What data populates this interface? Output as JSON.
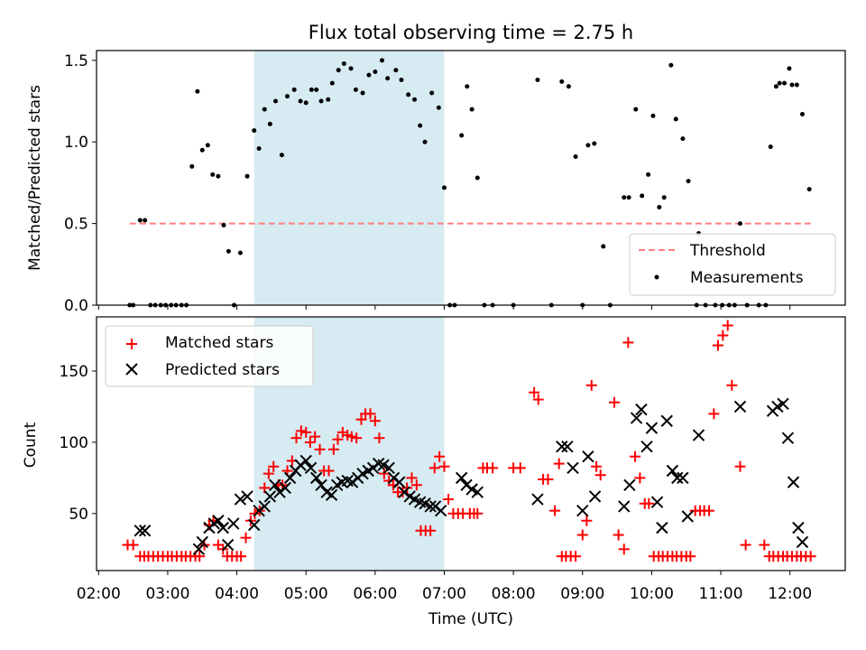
{
  "chart_data": {
    "title": "Flux total observing time = 2.75 h",
    "xlabel": "Time (UTC)",
    "x_unit": "hours UTC",
    "xlim": [
      1.97,
      12.8
    ],
    "xticks": [
      2,
      3,
      4,
      5,
      6,
      7,
      8,
      9,
      10,
      11,
      12
    ],
    "xtick_labels": [
      "02:00",
      "03:00",
      "04:00",
      "05:00",
      "06:00",
      "07:00",
      "08:00",
      "09:00",
      "10:00",
      "11:00",
      "12:00"
    ],
    "shaded_span": {
      "x": [
        4.25,
        7.0
      ],
      "color": "#add8e6"
    },
    "panels": [
      {
        "type": "scatter",
        "ylabel": "Matched/Predicted stars",
        "ylim": [
          0,
          1.56
        ],
        "yticks": [
          0.0,
          0.5,
          1.0,
          1.5
        ],
        "ytick_labels": [
          "0.0",
          "0.5",
          "1.0",
          "1.5"
        ],
        "legend_position": "lower-right",
        "series": [
          {
            "name": "Threshold",
            "kind": "hline",
            "y": 0.5,
            "x_range": [
              2.45,
              12.3
            ],
            "color": "#ff7f7f",
            "dash": true
          },
          {
            "name": "Measurements",
            "kind": "points",
            "color": "#000000",
            "x": [
              2.45,
              2.5,
              2.6,
              2.67,
              2.75,
              2.82,
              2.9,
              2.97,
              3.05,
              3.12,
              3.2,
              3.27,
              3.35,
              3.43,
              3.5,
              3.58,
              3.65,
              3.73,
              3.81,
              3.88,
              3.96,
              4.05,
              4.15,
              4.25,
              4.32,
              4.4,
              4.48,
              4.56,
              4.65,
              4.73,
              4.83,
              4.92,
              5.0,
              5.08,
              5.15,
              5.22,
              5.32,
              5.38,
              5.47,
              5.55,
              5.65,
              5.72,
              5.82,
              5.91,
              6.0,
              6.1,
              6.18,
              6.3,
              6.38,
              6.48,
              6.57,
              6.65,
              6.72,
              6.82,
              6.92,
              7.0,
              7.08,
              7.15,
              7.25,
              7.33,
              7.4,
              7.48,
              7.58,
              7.7,
              8.0,
              8.35,
              8.55,
              8.7,
              8.8,
              8.9,
              9.0,
              9.08,
              9.17,
              9.3,
              9.4,
              9.6,
              9.67,
              9.77,
              9.86,
              9.95,
              10.02,
              10.11,
              10.18,
              10.28,
              10.35,
              10.45,
              10.53,
              10.65,
              10.68,
              10.78,
              10.92,
              11.02,
              11.12,
              11.2,
              11.28,
              11.38,
              11.55,
              11.65,
              11.72,
              11.8,
              11.85,
              11.92,
              11.99,
              12.03,
              12.1,
              12.18,
              12.28
            ],
            "y": [
              0.0,
              0.0,
              0.52,
              0.52,
              0.0,
              0.0,
              0.0,
              0.0,
              0.0,
              0.0,
              0.0,
              0.0,
              0.85,
              1.31,
              0.95,
              0.98,
              0.8,
              0.79,
              0.49,
              0.33,
              0.0,
              0.32,
              0.79,
              1.07,
              0.96,
              1.2,
              1.11,
              1.25,
              0.92,
              1.28,
              1.32,
              1.25,
              1.24,
              1.32,
              1.32,
              1.25,
              1.26,
              1.36,
              1.44,
              1.48,
              1.45,
              1.32,
              1.3,
              1.41,
              1.43,
              1.5,
              1.39,
              1.44,
              1.38,
              1.29,
              1.26,
              1.1,
              1.0,
              1.3,
              1.21,
              0.72,
              0.0,
              0.0,
              1.04,
              1.34,
              1.2,
              0.78,
              0.0,
              0.0,
              0.0,
              1.38,
              0.0,
              1.37,
              1.34,
              0.91,
              0.0,
              0.98,
              0.99,
              0.36,
              0.0,
              0.66,
              0.66,
              1.2,
              0.67,
              0.8,
              1.16,
              0.6,
              0.66,
              1.47,
              1.14,
              1.02,
              0.76,
              0.0,
              0.44,
              0.0,
              0.0,
              0.0,
              0.0,
              0.0,
              0.5,
              0.0,
              0.0,
              0.0,
              0.97,
              1.34,
              1.36,
              1.36,
              1.45,
              1.35,
              1.35,
              1.17,
              0.71
            ]
          }
        ]
      },
      {
        "type": "scatter",
        "ylabel": "Count",
        "ylim": [
          10,
          188
        ],
        "yticks": [
          50,
          100,
          150
        ],
        "ytick_labels": [
          "50",
          "100",
          "150"
        ],
        "legend_position": "upper-left",
        "series": [
          {
            "name": "Matched stars",
            "kind": "plus",
            "color": "#ff0000",
            "x": [
              2.42,
              2.5,
              2.6,
              2.66,
              2.72,
              2.79,
              2.86,
              2.93,
              3.0,
              3.06,
              3.13,
              3.2,
              3.26,
              3.33,
              3.4,
              3.46,
              3.53,
              3.6,
              3.66,
              3.73,
              3.8,
              3.86,
              3.93,
              4.0,
              4.06,
              4.13,
              4.2,
              4.26,
              4.33,
              4.4,
              4.46,
              4.53,
              4.6,
              4.66,
              4.73,
              4.8,
              4.86,
              4.93,
              5.0,
              5.06,
              5.13,
              5.2,
              5.26,
              5.33,
              5.4,
              5.46,
              5.53,
              5.6,
              5.66,
              5.73,
              5.8,
              5.86,
              5.93,
              6.0,
              6.06,
              6.13,
              6.2,
              6.26,
              6.33,
              6.4,
              6.46,
              6.53,
              6.6,
              6.66,
              6.73,
              6.8,
              6.86,
              6.93,
              7.0,
              7.06,
              7.13,
              7.2,
              7.27,
              7.37,
              7.43,
              7.48,
              7.56,
              7.62,
              7.7,
              8.0,
              8.1,
              8.3,
              8.36,
              8.43,
              8.5,
              8.6,
              8.66,
              8.7,
              8.76,
              8.83,
              8.9,
              9.0,
              9.06,
              9.13,
              9.2,
              9.26,
              9.46,
              9.52,
              9.6,
              9.66,
              9.76,
              9.83,
              9.9,
              9.96,
              10.03,
              10.1,
              10.16,
              10.23,
              10.3,
              10.36,
              10.43,
              10.5,
              10.56,
              10.63,
              10.7,
              10.76,
              10.83,
              10.9,
              10.96,
              11.03,
              11.1,
              11.16,
              11.28,
              11.36,
              11.63,
              11.7,
              11.76,
              11.83,
              11.9,
              11.96,
              12.03,
              12.1,
              12.16,
              12.23,
              12.3
            ],
            "y": [
              28,
              28,
              20,
              20,
              20,
              20,
              20,
              20,
              20,
              20,
              20,
              20,
              20,
              20,
              20,
              20,
              28,
              42,
              45,
              28,
              25,
              20,
              20,
              20,
              20,
              33,
              45,
              50,
              52,
              68,
              78,
              83,
              70,
              70,
              80,
              87,
              103,
              108,
              107,
              100,
              104,
              95,
              80,
              80,
              95,
              102,
              107,
              105,
              104,
              103,
              116,
              120,
              120,
              115,
              103,
              78,
              73,
              70,
              65,
              65,
              68,
              75,
              70,
              38,
              38,
              38,
              82,
              90,
              83,
              60,
              50,
              50,
              50,
              50,
              50,
              50,
              82,
              82,
              82,
              82,
              82,
              135,
              130,
              74,
              74,
              52,
              85,
              20,
              20,
              20,
              20,
              35,
              45,
              140,
              83,
              77,
              128,
              35,
              25,
              170,
              90,
              75,
              57,
              57,
              20,
              20,
              20,
              20,
              20,
              20,
              20,
              20,
              20,
              52,
              52,
              52,
              52,
              120,
              168,
              175,
              182,
              140,
              83,
              28,
              28,
              20,
              20,
              20,
              20,
              20,
              20,
              20,
              20,
              20,
              20
            ],
            "pairs_note": ""
          },
          {
            "name": "Predicted stars",
            "kind": "x",
            "color": "#000000",
            "x": [
              2.6,
              2.67,
              3.45,
              3.5,
              3.6,
              3.67,
              3.73,
              3.8,
              3.87,
              3.95,
              4.05,
              4.15,
              4.25,
              4.32,
              4.4,
              4.48,
              4.55,
              4.62,
              4.7,
              4.77,
              4.85,
              4.92,
              5.0,
              5.07,
              5.15,
              5.22,
              5.3,
              5.37,
              5.45,
              5.52,
              5.6,
              5.67,
              5.75,
              5.82,
              5.9,
              5.97,
              6.05,
              6.12,
              6.2,
              6.27,
              6.35,
              6.42,
              6.5,
              6.57,
              6.65,
              6.72,
              6.8,
              6.87,
              6.95,
              7.25,
              7.32,
              7.4,
              7.48,
              8.35,
              8.7,
              8.78,
              8.86,
              9.0,
              9.08,
              9.18,
              9.6,
              9.68,
              9.78,
              9.85,
              9.93,
              10.0,
              10.08,
              10.15,
              10.22,
              10.3,
              10.37,
              10.45,
              10.52,
              10.68,
              11.28,
              11.75,
              11.82,
              11.9,
              11.97,
              12.05,
              12.12,
              12.18
            ],
            "y": [
              38,
              38,
              25,
              30,
              40,
              43,
              45,
              40,
              28,
              43,
              60,
              62,
              42,
              52,
              55,
              62,
              70,
              65,
              68,
              75,
              80,
              84,
              87,
              82,
              75,
              70,
              65,
              63,
              70,
              72,
              73,
              72,
              75,
              78,
              80,
              82,
              85,
              84,
              82,
              75,
              72,
              65,
              62,
              60,
              58,
              57,
              55,
              55,
              52,
              75,
              70,
              67,
              65,
              60,
              97,
              97,
              82,
              52,
              90,
              62,
              55,
              70,
              117,
              123,
              97,
              110,
              58,
              40,
              115,
              80,
              75,
              75,
              48,
              105,
              125,
              122,
              125,
              127,
              103,
              72,
              40,
              30
            ]
          }
        ]
      }
    ]
  }
}
